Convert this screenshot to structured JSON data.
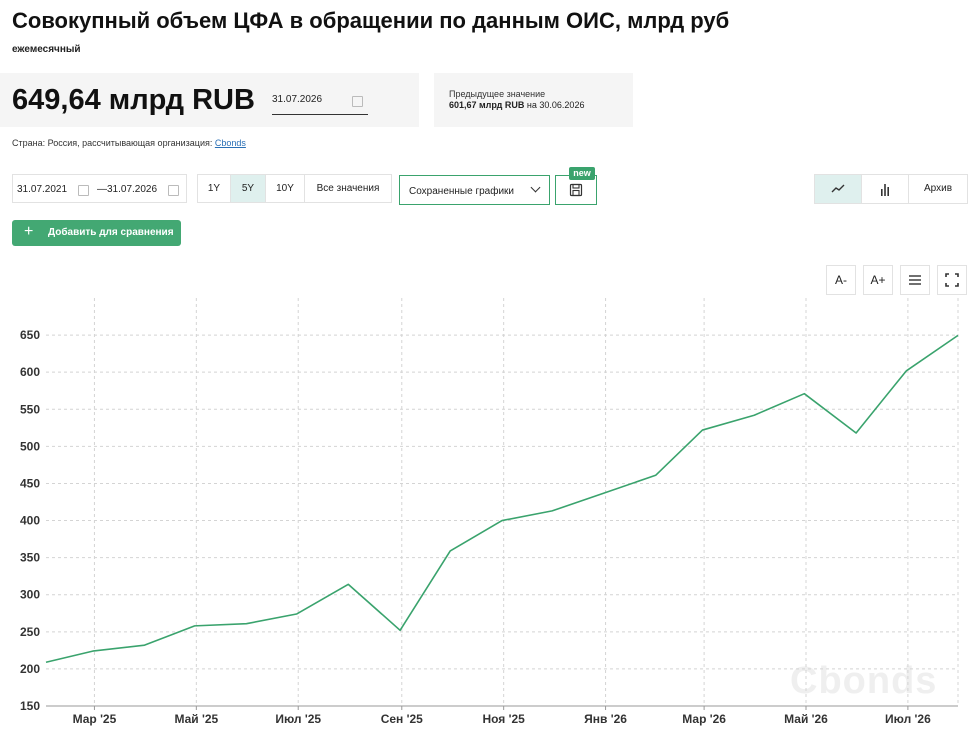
{
  "header": {
    "title": "Совокупный объем ЦФА в обращении по данным ОИС, млрд руб",
    "frequency": "ежемесячный"
  },
  "current": {
    "value": "649,64 млрд RUB",
    "date": "31.07.2026"
  },
  "previous": {
    "label": "Предыдущее значение",
    "value": "601,67 млрд RUB",
    "on": "на",
    "date": "30.06.2026"
  },
  "meta": {
    "country_text": "Страна: Россия, рассчитывающая организация:",
    "org_link": "Cbonds"
  },
  "controls": {
    "date_from": "31.07.2021",
    "date_sep": "—",
    "date_to": "31.07.2026",
    "periods": [
      "1Y",
      "5Y",
      "10Y",
      "Все значения"
    ],
    "active_period": "5Y",
    "saved_charts": "Сохраненные графики",
    "new_badge": "new",
    "archive": "Архив",
    "add_compare": "Добавить для сравнения",
    "font_minus": "A-",
    "font_plus": "A+"
  },
  "watermark": "Cbonds",
  "colors": {
    "accent": "#43a873",
    "line": "#3aa36d",
    "active_bg": "#dff0ee"
  },
  "chart_data": {
    "type": "line",
    "title": "",
    "xlabel": "",
    "ylabel": "",
    "x": [
      "2025-01-31",
      "2025-02-28",
      "2025-03-31",
      "2025-04-30",
      "2025-05-31",
      "2025-06-30",
      "2025-07-31",
      "2025-08-31",
      "2025-09-30",
      "2025-10-31",
      "2025-11-30",
      "2025-12-31",
      "2026-01-31",
      "2026-02-28",
      "2026-03-31",
      "2026-04-30",
      "2026-05-31",
      "2026-06-30",
      "2026-07-31"
    ],
    "series": [
      {
        "values": [
          209,
          224,
          232,
          258,
          261,
          274,
          314,
          252,
          359,
          400,
          413,
          437,
          461,
          522,
          542,
          571,
          518,
          601.67,
          649.64
        ]
      }
    ],
    "x_ticks": [
      {
        "date": "2025-03-01",
        "label": "Мар '25"
      },
      {
        "date": "2025-05-01",
        "label": "Май '25"
      },
      {
        "date": "2025-07-01",
        "label": "Июл '25"
      },
      {
        "date": "2025-09-01",
        "label": "Сен '25"
      },
      {
        "date": "2025-11-01",
        "label": "Ноя '25"
      },
      {
        "date": "2026-01-01",
        "label": "Янв '26"
      },
      {
        "date": "2026-03-01",
        "label": "Мар '26"
      },
      {
        "date": "2026-05-01",
        "label": "Май '26"
      },
      {
        "date": "2026-07-01",
        "label": "Июл '26"
      }
    ],
    "y_ticks": [
      150,
      200,
      250,
      300,
      350,
      400,
      450,
      500,
      550,
      600,
      650
    ],
    "ylim": [
      150,
      700
    ],
    "xlim": [
      "2025-01-31",
      "2026-07-31"
    ],
    "grid": true,
    "legend": "none"
  }
}
